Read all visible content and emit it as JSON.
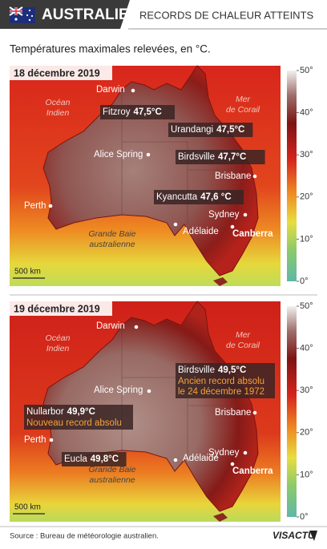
{
  "header": {
    "region": "AUSTRALIE",
    "title": "RECORDS DE CHALEUR ATTEINTS"
  },
  "subtitle": "Températures maximales relevées, en °C.",
  "maps": [
    {
      "date": "18 décembre 2019",
      "scale": "500 km",
      "oceans": [
        [
          "Océan",
          "Indien"
        ],
        [
          "Mer",
          "de Corail"
        ],
        [
          "Grande Baie",
          "australienne"
        ]
      ],
      "places": [
        {
          "name": "Darwin"
        },
        {
          "name": "Fitzroy",
          "value": "47,5°C"
        },
        {
          "name": "Urandangi",
          "value": "47,5°C"
        },
        {
          "name": "Alice Spring"
        },
        {
          "name": "Birdsville",
          "value": "47,7°C"
        },
        {
          "name": "Brisbane"
        },
        {
          "name": "Kyancutta",
          "value": "47,6 °C"
        },
        {
          "name": "Perth"
        },
        {
          "name": "Sydney"
        },
        {
          "name": "Adélaide"
        },
        {
          "name": "Canberra"
        }
      ]
    },
    {
      "date": "19 décembre 2019",
      "scale": "500 km",
      "oceans": [
        [
          "Océan",
          "Indien"
        ],
        [
          "Mer",
          "de Corail"
        ],
        [
          "Grande Baie",
          "australienne"
        ]
      ],
      "places": [
        {
          "name": "Darwin"
        },
        {
          "name": "Birdsville",
          "value": "49,5°C",
          "notes": [
            "Ancien record absolu",
            "le 24 décembre 1972"
          ]
        },
        {
          "name": "Alice Spring"
        },
        {
          "name": "Nullarbor",
          "value": "49,9°C",
          "notes": [
            "Nouveau record absolu"
          ]
        },
        {
          "name": "Perth"
        },
        {
          "name": "Brisbane"
        },
        {
          "name": "Eucla",
          "value": "49,8°C"
        },
        {
          "name": "Adélaide"
        },
        {
          "name": "Sydney"
        },
        {
          "name": "Canberra"
        }
      ]
    }
  ],
  "legend": {
    "ticks": [
      {
        "value": 50,
        "label": "50°"
      },
      {
        "value": 40,
        "label": "40°"
      },
      {
        "value": 30,
        "label": "30°"
      },
      {
        "value": 20,
        "label": "20°"
      },
      {
        "value": 10,
        "label": "10°"
      },
      {
        "value": 0,
        "label": "0°"
      }
    ]
  },
  "source": "Source : Bureau de météorologie australien.",
  "brand": "VISACTU"
}
